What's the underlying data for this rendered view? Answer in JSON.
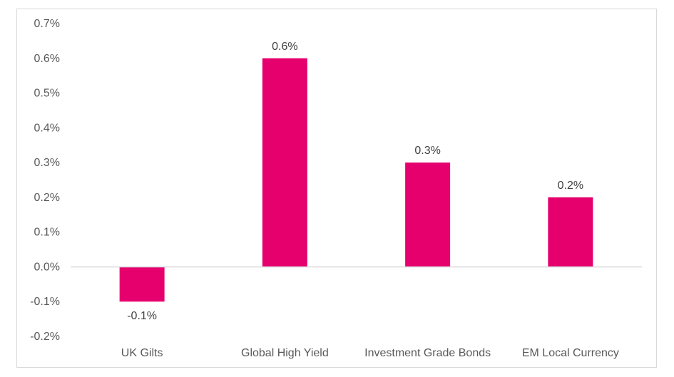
{
  "chart_data": {
    "type": "bar",
    "title": "",
    "xlabel": "",
    "ylabel": "",
    "categories": [
      "UK Gilts",
      "Global High Yield",
      "Investment Grade Bonds",
      "EM Local Currency"
    ],
    "values": [
      -0.1,
      0.6,
      0.3,
      0.2
    ],
    "data_labels": [
      "-0.1%",
      "0.6%",
      "0.3%",
      "0.2%"
    ],
    "ylim": [
      -0.2,
      0.7
    ],
    "yticks": [
      0.7,
      0.6,
      0.5,
      0.4,
      0.3,
      0.2,
      0.1,
      0.0,
      -0.1,
      -0.2
    ],
    "ytick_labels": [
      "0.7%",
      "0.6%",
      "0.5%",
      "0.4%",
      "0.3%",
      "0.2%",
      "0.1%",
      "0.0%",
      "-0.1%",
      "-0.2%"
    ],
    "grid": false,
    "legend": "none",
    "bar_color": "#E5006E",
    "axis_color": "#d9d9d9"
  }
}
